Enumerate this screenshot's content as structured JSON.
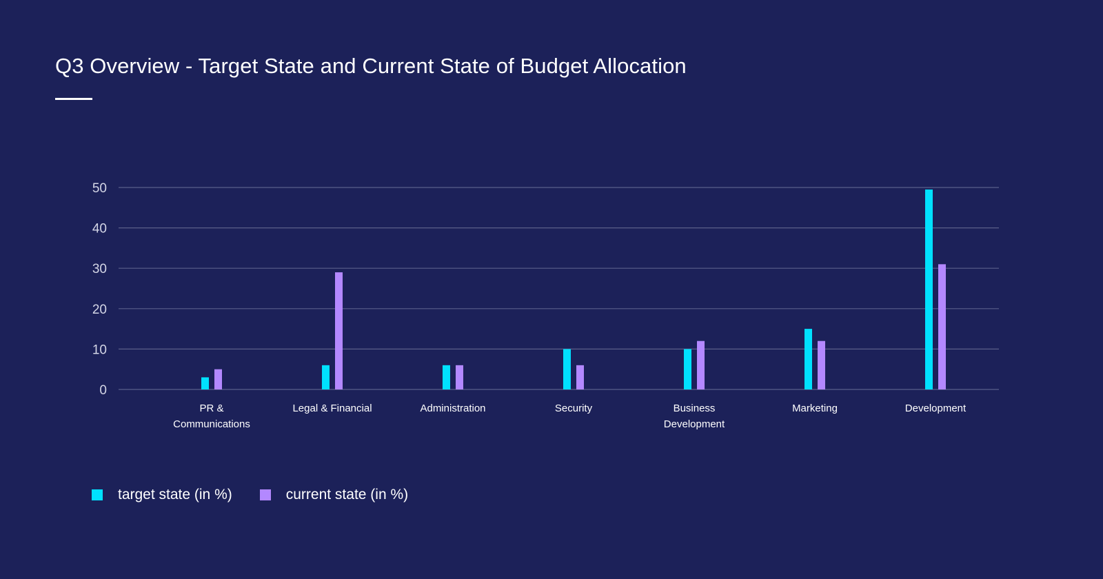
{
  "header": {
    "title": "Q3 Overview - Target State and Current State of Budget Allocation"
  },
  "colors": {
    "background": "#1c2159",
    "target": "#00e1ff",
    "current": "#b388ff",
    "grid": "#5a5f8a"
  },
  "chart_data": {
    "type": "bar",
    "title": "Q3 Overview - Target State and Current State of Budget Allocation",
    "xlabel": "",
    "ylabel": "",
    "ylim": [
      0,
      50
    ],
    "yticks": [
      0,
      10,
      20,
      30,
      40,
      50
    ],
    "grid": true,
    "legend_position": "bottom-left",
    "categories": [
      "PR & Communications",
      "Legal & Financial",
      "Administration",
      "Security",
      "Business Development",
      "Marketing",
      "Development"
    ],
    "category_lines": [
      [
        "PR &",
        "Communications"
      ],
      [
        "Legal & Financial"
      ],
      [
        "Administration"
      ],
      [
        "Security"
      ],
      [
        "Business",
        "Development"
      ],
      [
        "Marketing"
      ],
      [
        "Development"
      ]
    ],
    "series": [
      {
        "name": "target state (in %)",
        "color": "#00e1ff",
        "values": [
          3,
          6,
          6,
          10,
          10,
          15,
          49.5
        ]
      },
      {
        "name": "current state (in %)",
        "color": "#b388ff",
        "values": [
          5,
          29,
          6,
          6,
          12,
          12,
          31
        ]
      }
    ]
  }
}
